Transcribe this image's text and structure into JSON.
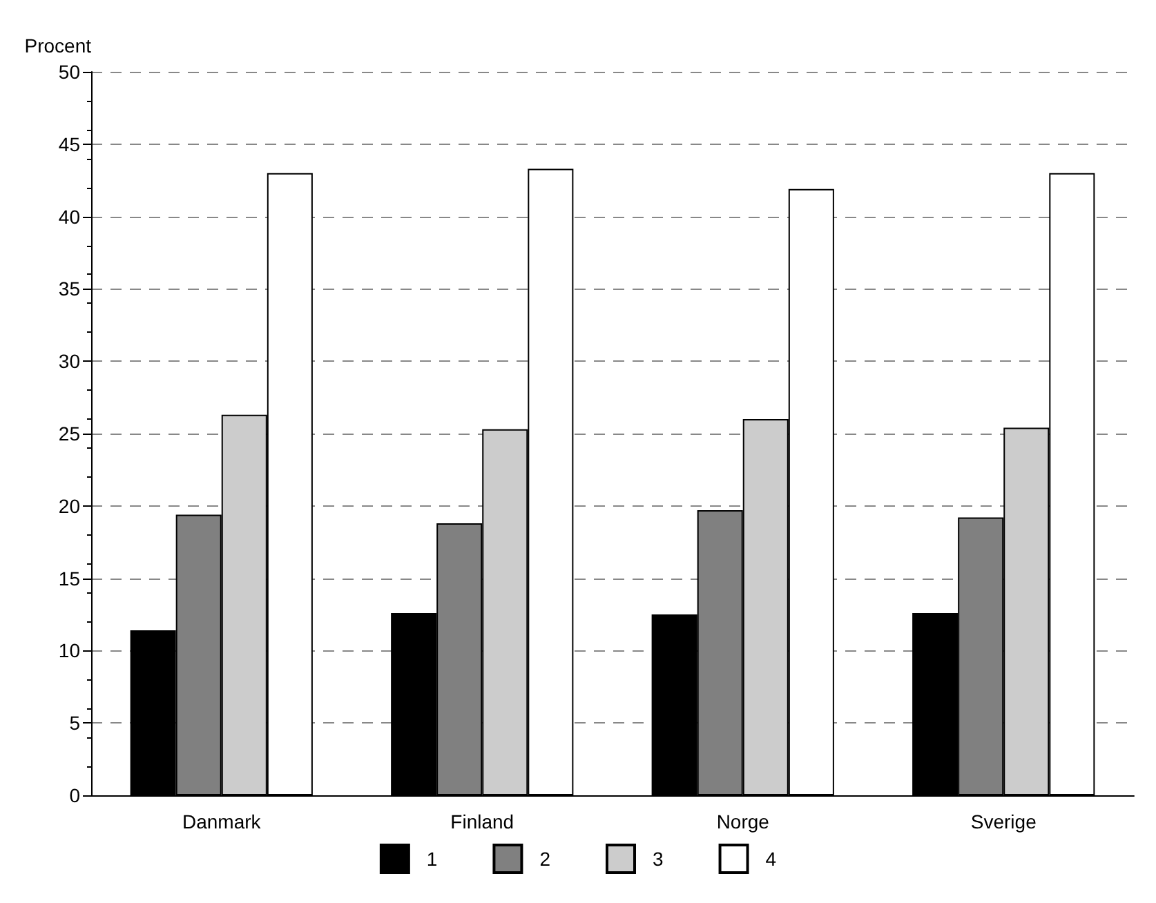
{
  "chart_data": {
    "type": "bar",
    "ylabel": "Procent",
    "categories": [
      "Danmark",
      "Finland",
      "Norge",
      "Sverige"
    ],
    "series": [
      {
        "name": "1",
        "color": "#000000",
        "values": [
          11.4,
          12.6,
          12.5,
          12.6
        ]
      },
      {
        "name": "2",
        "color": "#808080",
        "values": [
          19.4,
          18.8,
          19.7,
          19.2
        ]
      },
      {
        "name": "3",
        "color": "#cccccc",
        "values": [
          26.3,
          25.3,
          26.0,
          25.4
        ]
      },
      {
        "name": "4",
        "color": "#ffffff",
        "values": [
          43.0,
          43.3,
          41.9,
          43.0
        ]
      }
    ],
    "ylim": [
      0,
      50
    ],
    "yticks": [
      0,
      5,
      10,
      15,
      20,
      25,
      30,
      35,
      40,
      45,
      50
    ],
    "grid": "y",
    "legend": "bottom"
  }
}
